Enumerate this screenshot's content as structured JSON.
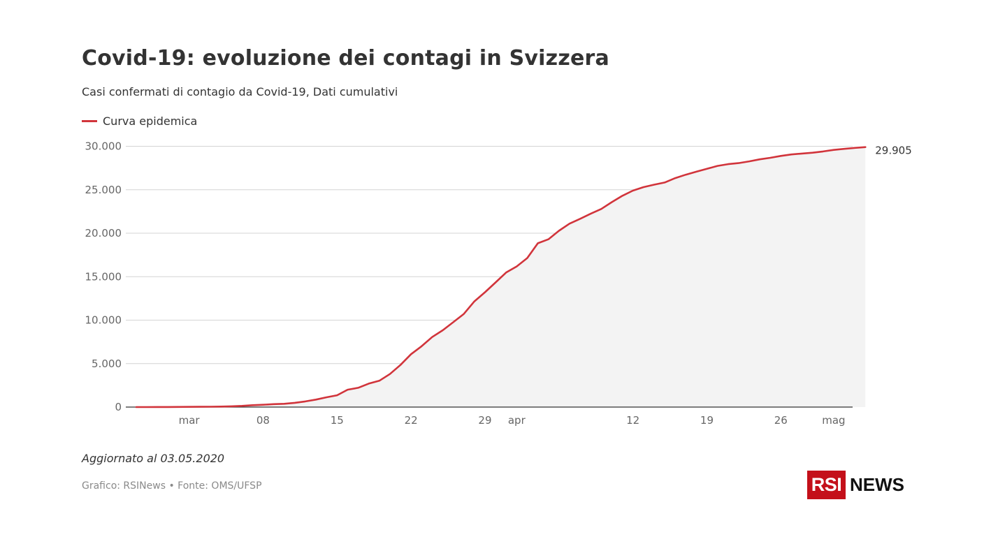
{
  "header": {
    "title": "Covid-19: evoluzione dei contagi in Svizzera",
    "subtitle": "Casi confermati di contagio da Covid-19, Dati cumulativi"
  },
  "footer": {
    "updated": "Aggiornato al 03.05.2020",
    "source": "Grafico: RSINews • Fonte: OMS/UFSP"
  },
  "logo": {
    "badge": "RSI",
    "text": "NEWS"
  },
  "colors": {
    "line": "#d1343b",
    "area": "#f3f3f3",
    "grid": "#d4d4d4",
    "axis": "#333333",
    "logo": "#c4101a"
  },
  "chart_data": {
    "type": "area",
    "title": "Covid-19: evoluzione dei contagi in Svizzera",
    "subtitle": "Casi confermati di contagio da Covid-19, Dati cumulativi",
    "xlabel": "",
    "ylabel": "",
    "legend": {
      "position": "top-left",
      "entries": [
        "Curva epidemica"
      ]
    },
    "grid": true,
    "x_range": [
      "2020-02-25",
      "2020-05-02"
    ],
    "ylim": [
      0,
      30000
    ],
    "y_ticks": [
      {
        "value": 0,
        "label": "0"
      },
      {
        "value": 5000,
        "label": "5.000"
      },
      {
        "value": 10000,
        "label": "10.000"
      },
      {
        "value": 15000,
        "label": "15.000"
      },
      {
        "value": 20000,
        "label": "20.000"
      },
      {
        "value": 25000,
        "label": "25.000"
      },
      {
        "value": 30000,
        "label": "30.000"
      }
    ],
    "x_ticks": [
      {
        "date": "2020-03-01",
        "label": "mar"
      },
      {
        "date": "2020-03-08",
        "label": "08"
      },
      {
        "date": "2020-03-15",
        "label": "15"
      },
      {
        "date": "2020-03-22",
        "label": "22"
      },
      {
        "date": "2020-03-29",
        "label": "29"
      },
      {
        "date": "2020-04-01",
        "label": "apr"
      },
      {
        "date": "2020-04-12",
        "label": "12"
      },
      {
        "date": "2020-04-19",
        "label": "19"
      },
      {
        "date": "2020-04-26",
        "label": "26"
      },
      {
        "date": "2020-05-01",
        "label": "mag"
      }
    ],
    "end_label": "29.905",
    "series": [
      {
        "name": "Curva epidemica",
        "points": [
          [
            "2020-02-25",
            1
          ],
          [
            "2020-02-26",
            2
          ],
          [
            "2020-02-27",
            8
          ],
          [
            "2020-02-28",
            10
          ],
          [
            "2020-02-29",
            19
          ],
          [
            "2020-03-01",
            24
          ],
          [
            "2020-03-02",
            30
          ],
          [
            "2020-03-03",
            37
          ],
          [
            "2020-03-04",
            58
          ],
          [
            "2020-03-05",
            90
          ],
          [
            "2020-03-06",
            137
          ],
          [
            "2020-03-07",
            214
          ],
          [
            "2020-03-08",
            268
          ],
          [
            "2020-03-09",
            337
          ],
          [
            "2020-03-10",
            374
          ],
          [
            "2020-03-11",
            491
          ],
          [
            "2020-03-12",
            652
          ],
          [
            "2020-03-13",
            858
          ],
          [
            "2020-03-14",
            1125
          ],
          [
            "2020-03-15",
            1359
          ],
          [
            "2020-03-16",
            2000
          ],
          [
            "2020-03-17",
            2217
          ],
          [
            "2020-03-18",
            2700
          ],
          [
            "2020-03-19",
            3028
          ],
          [
            "2020-03-20",
            3800
          ],
          [
            "2020-03-21",
            4840
          ],
          [
            "2020-03-22",
            6077
          ],
          [
            "2020-03-23",
            7000
          ],
          [
            "2020-03-24",
            8060
          ],
          [
            "2020-03-25",
            8836
          ],
          [
            "2020-03-26",
            9765
          ],
          [
            "2020-03-27",
            10714
          ],
          [
            "2020-03-28",
            12161
          ],
          [
            "2020-03-29",
            13213
          ],
          [
            "2020-03-30",
            14336
          ],
          [
            "2020-03-31",
            15475
          ],
          [
            "2020-04-01",
            16176
          ],
          [
            "2020-04-02",
            17139
          ],
          [
            "2020-04-03",
            18844
          ],
          [
            "2020-04-04",
            19303
          ],
          [
            "2020-04-05",
            20278
          ],
          [
            "2020-04-06",
            21100
          ],
          [
            "2020-04-07",
            21657
          ],
          [
            "2020-04-08",
            22242
          ],
          [
            "2020-04-09",
            22789
          ],
          [
            "2020-04-10",
            23574
          ],
          [
            "2020-04-11",
            24308
          ],
          [
            "2020-04-12",
            24900
          ],
          [
            "2020-04-13",
            25300
          ],
          [
            "2020-04-14",
            25580
          ],
          [
            "2020-04-15",
            25830
          ],
          [
            "2020-04-16",
            26336
          ],
          [
            "2020-04-17",
            26732
          ],
          [
            "2020-04-18",
            27078
          ],
          [
            "2020-04-19",
            27404
          ],
          [
            "2020-04-20",
            27740
          ],
          [
            "2020-04-21",
            27944
          ],
          [
            "2020-04-22",
            28063
          ],
          [
            "2020-04-23",
            28268
          ],
          [
            "2020-04-24",
            28496
          ],
          [
            "2020-04-25",
            28677
          ],
          [
            "2020-04-26",
            28894
          ],
          [
            "2020-04-27",
            29061
          ],
          [
            "2020-04-28",
            29164
          ],
          [
            "2020-04-29",
            29264
          ],
          [
            "2020-04-30",
            29407
          ],
          [
            "2020-05-01",
            29586
          ],
          [
            "2020-05-02",
            29705
          ],
          [
            "2020-05-03",
            29817
          ],
          [
            "2020-05-04",
            29905
          ]
        ]
      }
    ]
  }
}
